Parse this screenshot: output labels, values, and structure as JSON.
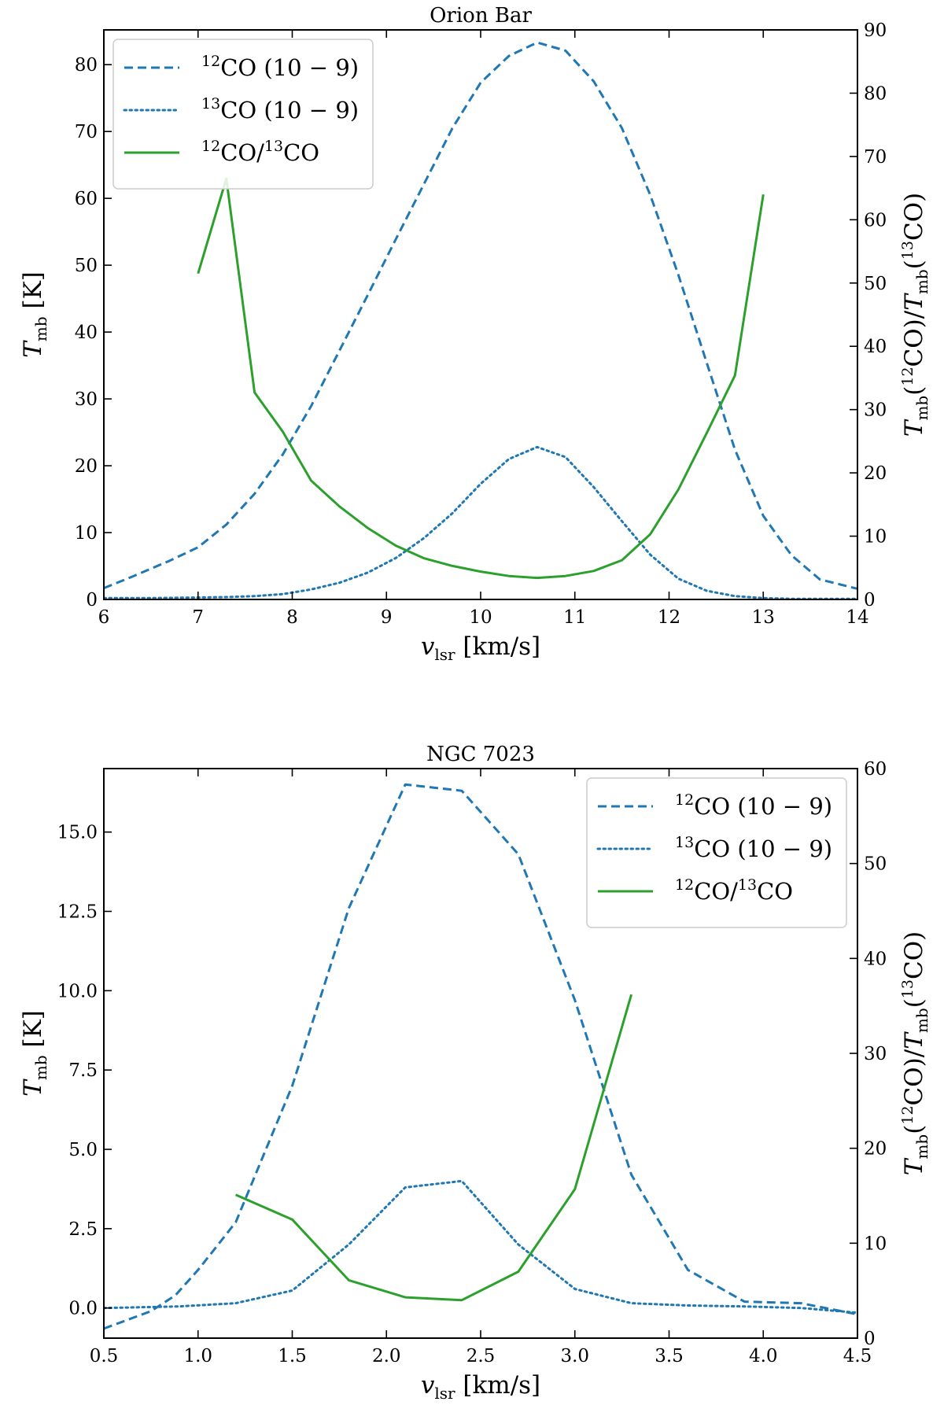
{
  "chart_data": [
    {
      "type": "line",
      "title": "Orion Bar",
      "xlabel": {
        "symbol": "v",
        "sub": "lsr",
        "unit": "[km/s]"
      },
      "ylabel": {
        "symbol": "T",
        "sub": "mb",
        "unit": "[K]"
      },
      "y2label": {
        "symbol": "T",
        "sub": "mb",
        "iso1": "12",
        "iso2": "13",
        "species": "CO"
      },
      "xlim": [
        6,
        14
      ],
      "ylim": [
        0,
        85.2
      ],
      "y2lim": [
        0,
        90
      ],
      "xticks": [
        "6",
        "7",
        "8",
        "9",
        "10",
        "11",
        "12",
        "13",
        "14"
      ],
      "yticks": [
        "0",
        "10",
        "20",
        "30",
        "40",
        "50",
        "60",
        "70",
        "80"
      ],
      "y2ticks": [
        "0",
        "10",
        "20",
        "30",
        "40",
        "50",
        "60",
        "70",
        "80",
        "90"
      ],
      "legend_position": "upper-left",
      "series": [
        {
          "name": "12CO (10 − 9)",
          "iso": "12",
          "label": "CO (10 − 9)",
          "style": "dashed",
          "color": "#1f77b4",
          "axis": "left",
          "x": [
            6.0,
            6.3,
            6.7,
            7.0,
            7.3,
            7.6,
            7.9,
            8.2,
            8.5,
            8.8,
            9.1,
            9.4,
            9.7,
            10.0,
            10.3,
            10.6,
            10.9,
            11.2,
            11.5,
            11.8,
            12.1,
            12.4,
            12.7,
            13.0,
            13.3,
            13.6,
            14.0
          ],
          "y": [
            1.7,
            3.4,
            5.8,
            7.8,
            11.2,
            15.8,
            21.7,
            28.9,
            37.2,
            45.5,
            53.9,
            62.2,
            70.5,
            77.3,
            81.3,
            83.3,
            82.1,
            77.5,
            70.5,
            60.5,
            48.5,
            35.4,
            22.4,
            12.5,
            6.6,
            3.0,
            1.6
          ]
        },
        {
          "name": "13CO (10 − 9)",
          "iso": "13",
          "label": "CO (10 − 9)",
          "style": "dotted",
          "color": "#1f77b4",
          "axis": "left",
          "x": [
            6.0,
            6.5,
            7.0,
            7.3,
            7.6,
            7.9,
            8.2,
            8.5,
            8.8,
            9.1,
            9.4,
            9.7,
            10.0,
            10.3,
            10.6,
            10.9,
            11.2,
            11.5,
            11.8,
            12.1,
            12.4,
            12.7,
            13.0,
            13.3,
            13.6,
            14.0
          ],
          "y": [
            0.2,
            0.2,
            0.3,
            0.35,
            0.5,
            0.8,
            1.5,
            2.5,
            4.0,
            6.2,
            9.2,
            12.9,
            17.3,
            21.0,
            22.8,
            21.3,
            16.8,
            11.7,
            6.7,
            3.1,
            1.3,
            0.5,
            0.2,
            0.1,
            0.1,
            0.1
          ]
        },
        {
          "name": "12CO/13CO",
          "iso": "12",
          "iso2": "13",
          "label": "CO/",
          "label2": "CO",
          "style": "solid",
          "color": "#2ca02c",
          "axis": "right",
          "x": [
            7.0,
            7.3,
            7.6,
            7.9,
            8.2,
            8.5,
            8.8,
            9.1,
            9.4,
            9.7,
            10.0,
            10.3,
            10.6,
            10.9,
            11.2,
            11.5,
            11.8,
            12.1,
            12.4,
            12.7,
            13.0
          ],
          "y": [
            51.5,
            66.5,
            32.7,
            26.5,
            18.8,
            14.7,
            11.3,
            8.5,
            6.5,
            5.3,
            4.4,
            3.7,
            3.4,
            3.7,
            4.5,
            6.2,
            10.3,
            17.4,
            26.3,
            35.4,
            64.0
          ]
        }
      ]
    },
    {
      "type": "line",
      "title": "NGC 7023",
      "xlabel": {
        "symbol": "v",
        "sub": "lsr",
        "unit": "[km/s]"
      },
      "ylabel": {
        "symbol": "T",
        "sub": "mb",
        "unit": "[K]"
      },
      "y2label": {
        "symbol": "T",
        "sub": "mb",
        "iso1": "12",
        "iso2": "13",
        "species": "CO"
      },
      "xlim": [
        0.5,
        4.5
      ],
      "ylim": [
        -0.95,
        17.0
      ],
      "y2lim": [
        0,
        60
      ],
      "xticks": [
        "0.5",
        "1.0",
        "1.5",
        "2.0",
        "2.5",
        "3.0",
        "3.5",
        "4.0",
        "4.5"
      ],
      "yticks": [
        "0.0",
        "2.5",
        "5.0",
        "7.5",
        "10.0",
        "12.5",
        "15.0"
      ],
      "y2ticks": [
        "0",
        "10",
        "20",
        "30",
        "40",
        "50",
        "60"
      ],
      "legend_position": "upper-right",
      "series": [
        {
          "name": "12CO (10 − 9)",
          "iso": "12",
          "label": "CO (10 − 9)",
          "style": "dashed",
          "color": "#1f77b4",
          "axis": "left",
          "x": [
            0.5,
            0.75,
            0.88,
            1.0,
            1.2,
            1.5,
            1.8,
            2.1,
            2.4,
            2.7,
            3.0,
            3.3,
            3.6,
            3.9,
            4.2,
            4.5
          ],
          "y": [
            -0.65,
            -0.1,
            0.4,
            1.2,
            2.7,
            7.0,
            12.6,
            16.5,
            16.3,
            14.3,
            9.7,
            4.2,
            1.2,
            0.2,
            0.15,
            -0.2
          ]
        },
        {
          "name": "13CO (10 − 9)",
          "iso": "13",
          "label": "CO (10 − 9)",
          "style": "dotted",
          "color": "#1f77b4",
          "axis": "left",
          "x": [
            0.5,
            0.9,
            1.2,
            1.5,
            1.8,
            2.1,
            2.4,
            2.7,
            3.0,
            3.3,
            3.6,
            3.9,
            4.2,
            4.5
          ],
          "y": [
            0.0,
            0.05,
            0.15,
            0.55,
            2.0,
            3.8,
            4.0,
            2.0,
            0.6,
            0.15,
            0.08,
            0.05,
            0.0,
            -0.15
          ]
        },
        {
          "name": "12CO/13CO",
          "iso": "12",
          "iso2": "13",
          "label": "CO/",
          "label2": "CO",
          "style": "solid",
          "color": "#2ca02c",
          "axis": "right",
          "x": [
            1.2,
            1.5,
            1.8,
            2.1,
            2.4,
            2.7,
            3.0,
            3.3
          ],
          "y": [
            15.1,
            12.5,
            6.1,
            4.3,
            4.0,
            7.0,
            15.7,
            36.2
          ]
        }
      ]
    }
  ]
}
